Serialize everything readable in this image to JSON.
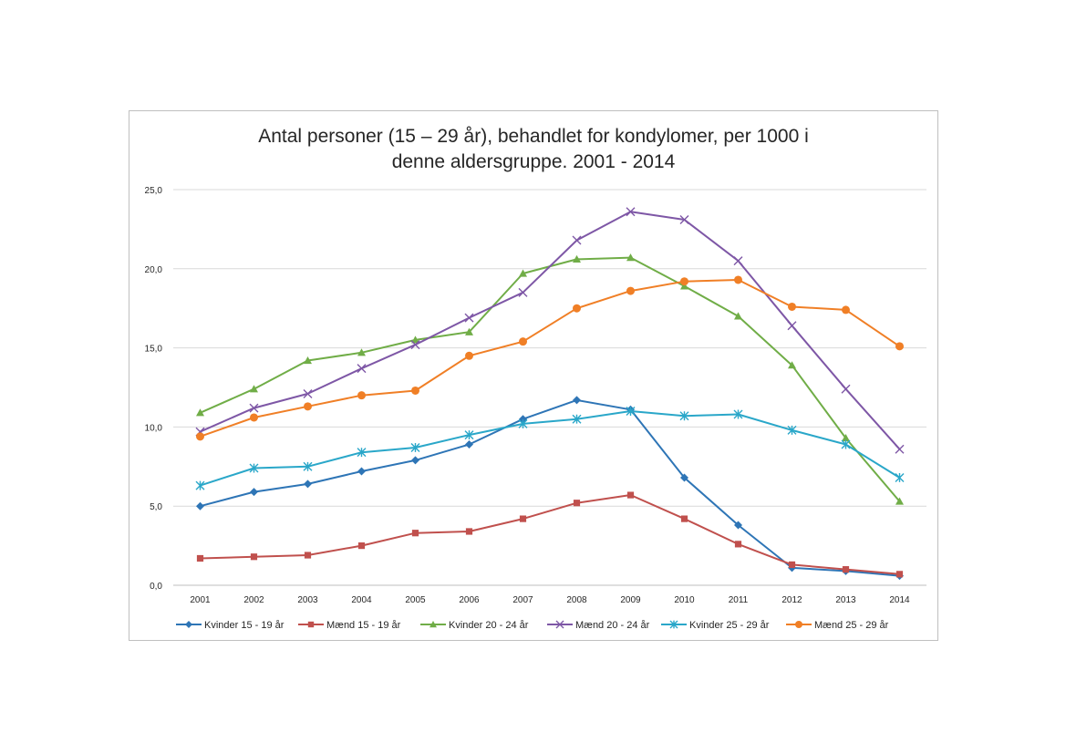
{
  "chart_data": {
    "type": "line",
    "title_lines": [
      "Antal personer (15 – 29 år), behandlet for kondylomer, per 1000 i",
      "denne aldersgruppe. 2001 - 2014"
    ],
    "xlabel": "",
    "ylabel": "",
    "x": [
      "2001",
      "2002",
      "2003",
      "2004",
      "2005",
      "2006",
      "2007",
      "2008",
      "2009",
      "2010",
      "2011",
      "2012",
      "2013",
      "2014"
    ],
    "ylim": [
      0,
      25
    ],
    "yticks": [
      0,
      5,
      10,
      15,
      20,
      25
    ],
    "ytick_labels": [
      "0,0",
      "5,0",
      "10,0",
      "15,0",
      "20,0",
      "25,0"
    ],
    "grid": "horizontal",
    "legend_position": "bottom",
    "series": [
      {
        "name": "Kvinder 15 - 19 år",
        "color": "#2E75B6",
        "marker": "diamond",
        "values": [
          5.0,
          5.9,
          6.4,
          7.2,
          7.9,
          8.9,
          10.5,
          11.7,
          11.1,
          6.8,
          3.8,
          1.1,
          0.9,
          0.6
        ]
      },
      {
        "name": "Mænd 15 - 19 år",
        "color": "#C0504D",
        "marker": "square",
        "values": [
          1.7,
          1.8,
          1.9,
          2.5,
          3.3,
          3.4,
          4.2,
          5.2,
          5.7,
          4.2,
          2.6,
          1.3,
          1.0,
          0.7
        ]
      },
      {
        "name": "Kvinder 20 - 24 år",
        "color": "#70AD47",
        "marker": "triangle",
        "values": [
          10.9,
          12.4,
          14.2,
          14.7,
          15.5,
          16.0,
          19.7,
          20.6,
          20.7,
          18.9,
          17.0,
          13.9,
          9.3,
          5.3
        ]
      },
      {
        "name": "Mænd 20 - 24 år",
        "color": "#7E57A6",
        "marker": "x",
        "values": [
          9.7,
          11.2,
          12.1,
          13.7,
          15.2,
          16.9,
          18.5,
          21.8,
          23.6,
          23.1,
          20.5,
          16.4,
          12.4,
          8.6
        ]
      },
      {
        "name": "Kvinder 25 - 29 år",
        "color": "#2AA7C9",
        "marker": "star",
        "values": [
          6.3,
          7.4,
          7.5,
          8.4,
          8.7,
          9.5,
          10.2,
          10.5,
          11.0,
          10.7,
          10.8,
          9.8,
          8.9,
          6.8
        ]
      },
      {
        "name": "Mænd 25 - 29 år",
        "color": "#F07F26",
        "marker": "circle",
        "values": [
          9.4,
          10.6,
          11.3,
          12.0,
          12.3,
          14.5,
          15.4,
          17.5,
          18.6,
          19.2,
          19.3,
          17.6,
          17.4,
          15.1
        ]
      }
    ]
  }
}
